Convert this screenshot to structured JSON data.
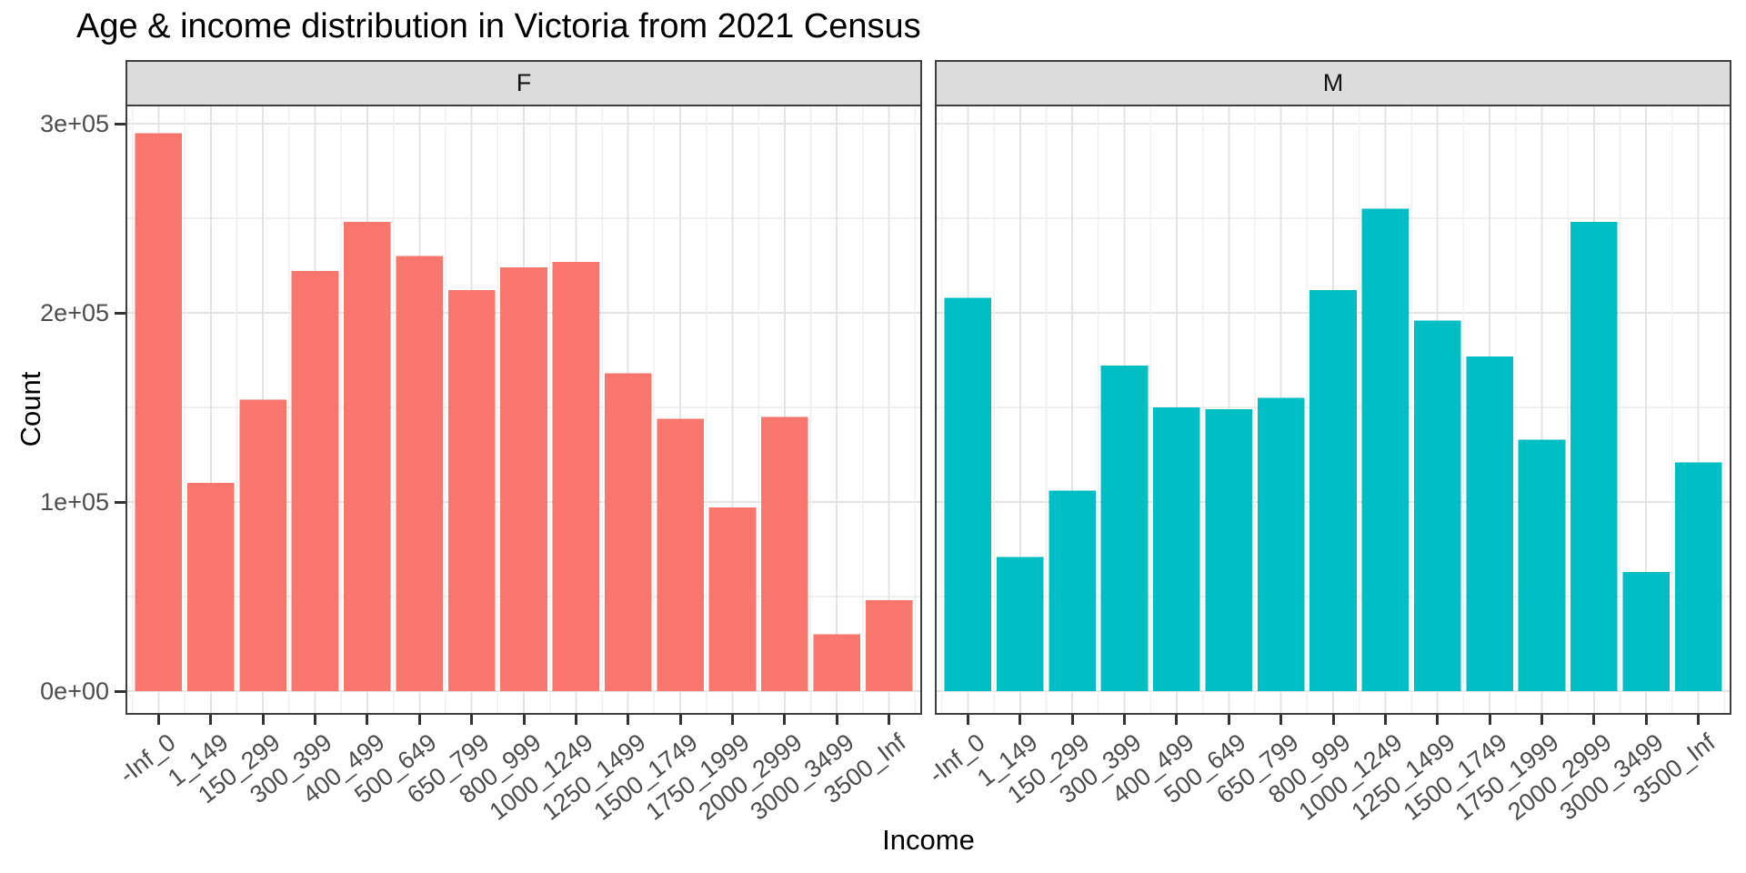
{
  "chart_data": {
    "type": "bar",
    "title": "Age & income distribution in Victoria from 2021 Census",
    "xlabel": "Income",
    "ylabel": "Count",
    "categories": [
      "-Inf_0",
      "1_149",
      "150_299",
      "300_399",
      "400_499",
      "500_649",
      "650_799",
      "800_999",
      "1000_1249",
      "1250_1499",
      "1500_1749",
      "1750_1999",
      "2000_2999",
      "3000_3499",
      "3500_Inf"
    ],
    "facets": [
      {
        "label": "F",
        "color": "#F8766D",
        "values": [
          295000,
          110000,
          154000,
          222000,
          248000,
          230000,
          212000,
          224000,
          227000,
          168000,
          144000,
          97000,
          145000,
          30000,
          48000
        ]
      },
      {
        "label": "M",
        "color": "#00BFC4",
        "values": [
          208000,
          71000,
          106000,
          172000,
          150000,
          149000,
          155000,
          212000,
          255000,
          196000,
          177000,
          133000,
          248000,
          63000,
          121000
        ]
      }
    ],
    "y_ticks": [
      {
        "label": "0e+00",
        "value": 0
      },
      {
        "label": "1e+05",
        "value": 100000
      },
      {
        "label": "2e+05",
        "value": 200000
      },
      {
        "label": "3e+05",
        "value": 300000
      }
    ],
    "y_minor_ticks": [
      50000,
      150000,
      250000
    ],
    "ylim": [
      -12000,
      312000
    ],
    "grid": "major+minor",
    "legend": "none"
  },
  "colors": {
    "bar_f": "#F8766D",
    "bar_m": "#00BFC4",
    "strip_fill": "#DCDCDC",
    "panel_border": "#3F3F3F",
    "grid_major": "#E4E4E4",
    "grid_minor": "#F0F0F0",
    "tick_mark": "#333333",
    "tick_label": "#4D4D4D",
    "text": "#000000"
  }
}
